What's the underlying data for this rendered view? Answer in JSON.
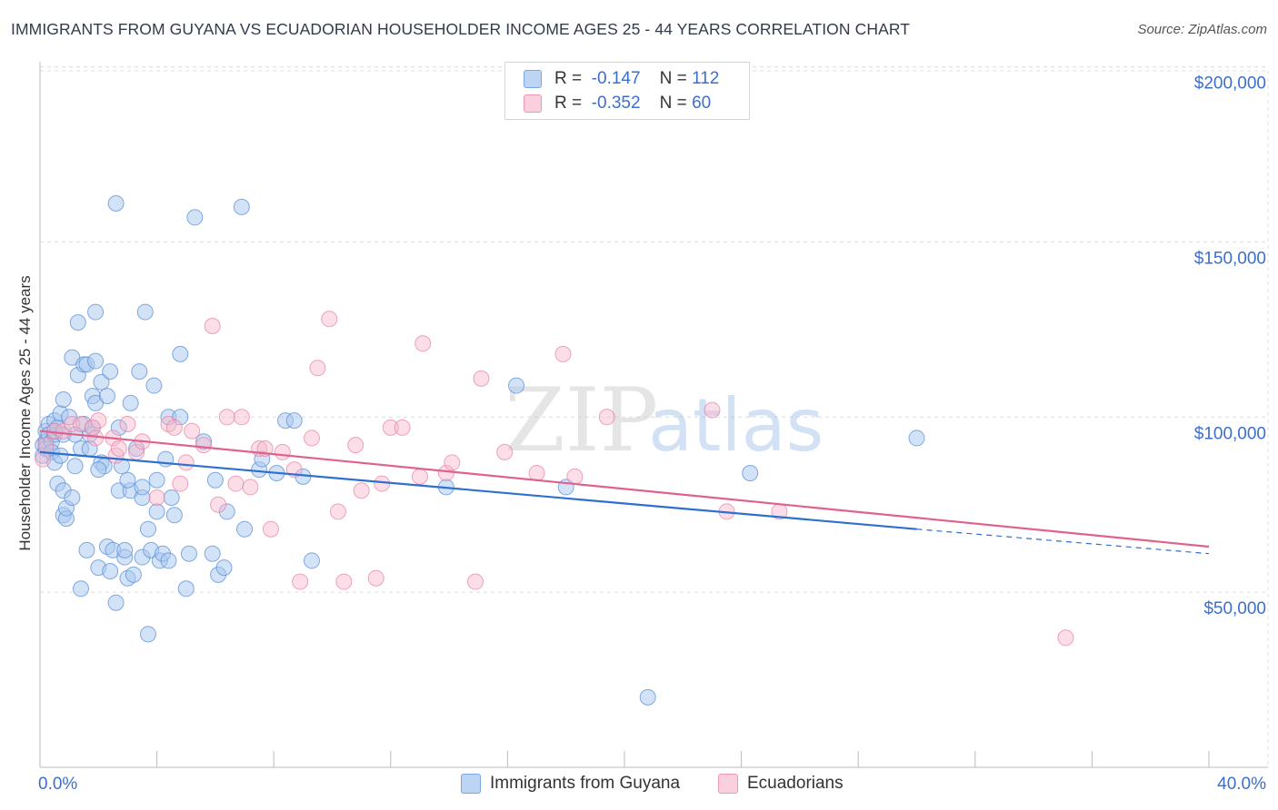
{
  "title": "IMMIGRANTS FROM GUYANA VS ECUADORIAN HOUSEHOLDER INCOME AGES 25 - 44 YEARS CORRELATION CHART",
  "source": "Source: ZipAtlas.com",
  "watermark": {
    "part1": "ZIP",
    "part2": "atlas"
  },
  "legend": {
    "rows": [
      {
        "r_label": "R =",
        "r_value": "-0.147",
        "n_label": "N =",
        "n_value": "112",
        "color": "#a8c8f0"
      },
      {
        "r_label": "R =",
        "r_value": "-0.352",
        "n_label": "N =",
        "n_value": "60",
        "color": "#f6b6cb"
      }
    ]
  },
  "bottom_legend": {
    "items": [
      {
        "label": "Immigrants from Guyana",
        "color": "#a8c8f0"
      },
      {
        "label": "Ecuadorians",
        "color": "#f6b6cb"
      }
    ]
  },
  "colors": {
    "blue_fill": "#a8c8f0",
    "blue_stroke": "#5b8fd8",
    "blue_line": "#2f6fd0",
    "pink_fill": "#f6b6cb",
    "pink_stroke": "#e7809f",
    "pink_line": "#e0628c",
    "tick_label": "#3a6fd0",
    "grid": "#dcdcdc"
  },
  "chart_data": {
    "type": "scatter",
    "title": "IMMIGRANTS FROM GUYANA VS ECUADORIAN HOUSEHOLDER INCOME AGES 25 - 44 YEARS CORRELATION CHART",
    "xlabel": "",
    "ylabel": "Householder Income Ages 25 - 44 years",
    "xlim": [
      0,
      40
    ],
    "ylim": [
      0,
      210000
    ],
    "x_tick_labels": [
      "0.0%",
      "40.0%"
    ],
    "y_ticks": [
      50000,
      100000,
      150000,
      200000
    ],
    "y_tick_labels": [
      "$50,000",
      "$100,000",
      "$150,000",
      "$200,000"
    ],
    "grid": true,
    "legend_position": "top-center",
    "series": [
      {
        "name": "Immigrants from Guyana",
        "trend": {
          "x": [
            0,
            30,
            40
          ],
          "y": [
            90000,
            68000,
            61000
          ],
          "solid_until": 30
        },
        "points": [
          [
            0.1,
            92000
          ],
          [
            0.1,
            89000
          ],
          [
            0.2,
            96000
          ],
          [
            0.2,
            93000
          ],
          [
            0.2,
            91000
          ],
          [
            0.3,
            98000
          ],
          [
            0.3,
            95000
          ],
          [
            0.4,
            93000
          ],
          [
            0.4,
            90000
          ],
          [
            0.5,
            87000
          ],
          [
            0.5,
            95000
          ],
          [
            0.5,
            99000
          ],
          [
            0.5,
            96000
          ],
          [
            0.6,
            81000
          ],
          [
            0.6,
            97000
          ],
          [
            0.7,
            89000
          ],
          [
            0.7,
            101000
          ],
          [
            0.8,
            95000
          ],
          [
            0.8,
            105000
          ],
          [
            0.8,
            72000
          ],
          [
            0.8,
            79000
          ],
          [
            0.9,
            71000
          ],
          [
            0.9,
            74000
          ],
          [
            1.0,
            100000
          ],
          [
            1.1,
            77000
          ],
          [
            1.1,
            117000
          ],
          [
            1.2,
            86000
          ],
          [
            1.3,
            112000
          ],
          [
            1.3,
            127000
          ],
          [
            1.4,
            91000
          ],
          [
            1.4,
            51000
          ],
          [
            1.5,
            98000
          ],
          [
            1.5,
            115000
          ],
          [
            1.6,
            115000
          ],
          [
            1.6,
            62000
          ],
          [
            1.7,
            91000
          ],
          [
            1.7,
            95000
          ],
          [
            1.8,
            106000
          ],
          [
            1.8,
            97000
          ],
          [
            1.9,
            116000
          ],
          [
            1.9,
            104000
          ],
          [
            1.9,
            130000
          ],
          [
            2.0,
            57000
          ],
          [
            2.1,
            110000
          ],
          [
            2.1,
            87000
          ],
          [
            2.2,
            86000
          ],
          [
            2.3,
            106000
          ],
          [
            2.3,
            63000
          ],
          [
            2.4,
            56000
          ],
          [
            2.4,
            113000
          ],
          [
            2.5,
            62000
          ],
          [
            2.6,
            47000
          ],
          [
            2.6,
            161000
          ],
          [
            2.7,
            79000
          ],
          [
            2.7,
            97000
          ],
          [
            2.8,
            86000
          ],
          [
            2.9,
            60000
          ],
          [
            2.9,
            62000
          ],
          [
            3.0,
            54000
          ],
          [
            3.1,
            79000
          ],
          [
            3.1,
            104000
          ],
          [
            3.2,
            55000
          ],
          [
            3.3,
            91000
          ],
          [
            3.4,
            113000
          ],
          [
            3.5,
            60000
          ],
          [
            3.5,
            77000
          ],
          [
            3.5,
            80000
          ],
          [
            3.6,
            130000
          ],
          [
            3.7,
            68000
          ],
          [
            3.7,
            38000
          ],
          [
            3.8,
            62000
          ],
          [
            3.9,
            109000
          ],
          [
            4.0,
            82000
          ],
          [
            4.0,
            73000
          ],
          [
            4.1,
            59000
          ],
          [
            4.2,
            61000
          ],
          [
            4.3,
            88000
          ],
          [
            4.4,
            100000
          ],
          [
            4.4,
            59000
          ],
          [
            4.5,
            77000
          ],
          [
            4.6,
            72000
          ],
          [
            4.8,
            118000
          ],
          [
            4.8,
            100000
          ],
          [
            5.0,
            51000
          ],
          [
            5.1,
            61000
          ],
          [
            5.3,
            157000
          ],
          [
            5.6,
            93000
          ],
          [
            5.9,
            61000
          ],
          [
            6.0,
            82000
          ],
          [
            6.1,
            55000
          ],
          [
            6.3,
            57000
          ],
          [
            6.4,
            73000
          ],
          [
            6.9,
            160000
          ],
          [
            7.0,
            68000
          ],
          [
            7.5,
            85000
          ],
          [
            7.6,
            88000
          ],
          [
            8.1,
            84000
          ],
          [
            8.4,
            99000
          ],
          [
            8.7,
            99000
          ],
          [
            9.0,
            83000
          ],
          [
            9.3,
            59000
          ],
          [
            13.9,
            80000
          ],
          [
            16.3,
            109000
          ],
          [
            18.0,
            80000
          ],
          [
            20.8,
            20000
          ],
          [
            24.3,
            84000
          ],
          [
            30.0,
            94000
          ],
          [
            1.2,
            95000
          ],
          [
            2.0,
            85000
          ],
          [
            3.0,
            82000
          ]
        ]
      },
      {
        "name": "Ecuadorians",
        "trend": {
          "x": [
            0,
            40
          ],
          "y": [
            96000,
            63000
          ]
        },
        "points": [
          [
            0.1,
            88000
          ],
          [
            0.2,
            92000
          ],
          [
            0.5,
            96000
          ],
          [
            0.8,
            96000
          ],
          [
            1.1,
            98000
          ],
          [
            1.4,
            98000
          ],
          [
            1.8,
            97000
          ],
          [
            1.9,
            94000
          ],
          [
            2.0,
            99000
          ],
          [
            2.5,
            94000
          ],
          [
            2.6,
            89000
          ],
          [
            2.7,
            91000
          ],
          [
            3.0,
            98000
          ],
          [
            3.3,
            90000
          ],
          [
            3.5,
            93000
          ],
          [
            4.0,
            77000
          ],
          [
            4.4,
            98000
          ],
          [
            4.6,
            97000
          ],
          [
            4.8,
            81000
          ],
          [
            5.0,
            87000
          ],
          [
            5.2,
            96000
          ],
          [
            5.6,
            92000
          ],
          [
            5.9,
            126000
          ],
          [
            6.1,
            75000
          ],
          [
            6.4,
            100000
          ],
          [
            6.7,
            81000
          ],
          [
            6.9,
            100000
          ],
          [
            7.2,
            80000
          ],
          [
            7.5,
            91000
          ],
          [
            7.7,
            91000
          ],
          [
            7.9,
            68000
          ],
          [
            8.3,
            90000
          ],
          [
            8.7,
            85000
          ],
          [
            8.9,
            53000
          ],
          [
            9.3,
            94000
          ],
          [
            9.5,
            114000
          ],
          [
            9.9,
            128000
          ],
          [
            10.2,
            73000
          ],
          [
            10.4,
            53000
          ],
          [
            10.8,
            92000
          ],
          [
            11.0,
            79000
          ],
          [
            11.5,
            54000
          ],
          [
            11.7,
            81000
          ],
          [
            12.0,
            97000
          ],
          [
            12.4,
            97000
          ],
          [
            13.0,
            83000
          ],
          [
            13.1,
            121000
          ],
          [
            13.9,
            84000
          ],
          [
            14.1,
            87000
          ],
          [
            14.9,
            53000
          ],
          [
            15.1,
            111000
          ],
          [
            15.9,
            90000
          ],
          [
            17.0,
            84000
          ],
          [
            17.9,
            118000
          ],
          [
            18.3,
            83000
          ],
          [
            19.4,
            100000
          ],
          [
            23.0,
            102000
          ],
          [
            23.5,
            73000
          ],
          [
            25.3,
            73000
          ],
          [
            35.1,
            37000
          ]
        ]
      }
    ]
  }
}
